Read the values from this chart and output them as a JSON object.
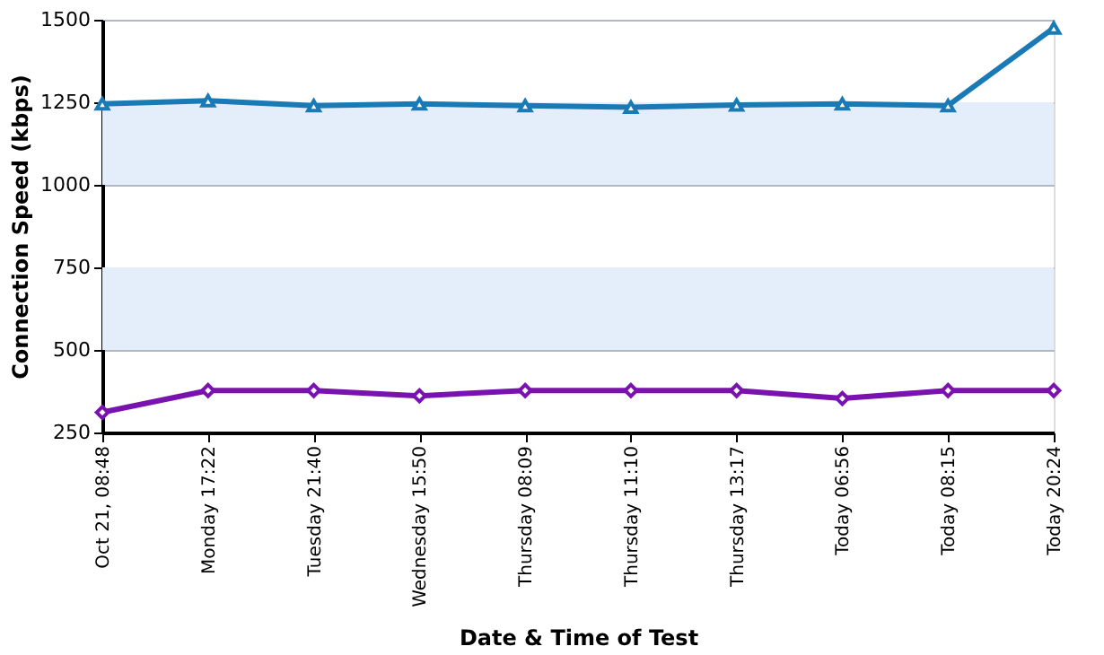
{
  "chart_data": {
    "type": "line",
    "xlabel": "Date & Time of Test",
    "ylabel": "Connection Speed (kbps)",
    "categories": [
      "Oct 21, 08:48",
      "Monday 17:22",
      "Tuesday 21:40",
      "Wednesday 15:50",
      "Thursday 08:09",
      "Thursday 11:10",
      "Thursday 13:17",
      "Today 06:56",
      "Today 08:15",
      "Today 20:24"
    ],
    "series": [
      {
        "color": "#1a7ab5",
        "marker": "triangle",
        "values": [
          1245,
          1255,
          1240,
          1245,
          1240,
          1235,
          1242,
          1245,
          1240,
          1475
        ]
      },
      {
        "color": "#7a12b0",
        "marker": "diamond",
        "values": [
          311,
          377,
          377,
          361,
          377,
          377,
          377,
          353,
          377,
          377
        ]
      }
    ],
    "ylim": [
      250,
      1500
    ],
    "yticks": [
      250,
      500,
      750,
      1000,
      1250,
      1500
    ],
    "grid": "y",
    "line_style": "solid",
    "bands": [
      {
        "axis": "y",
        "from": 500,
        "to": 750,
        "color": "#e4eefb"
      },
      {
        "axis": "y",
        "from": 1000,
        "to": 1250,
        "color": "#e4eefb"
      }
    ]
  }
}
